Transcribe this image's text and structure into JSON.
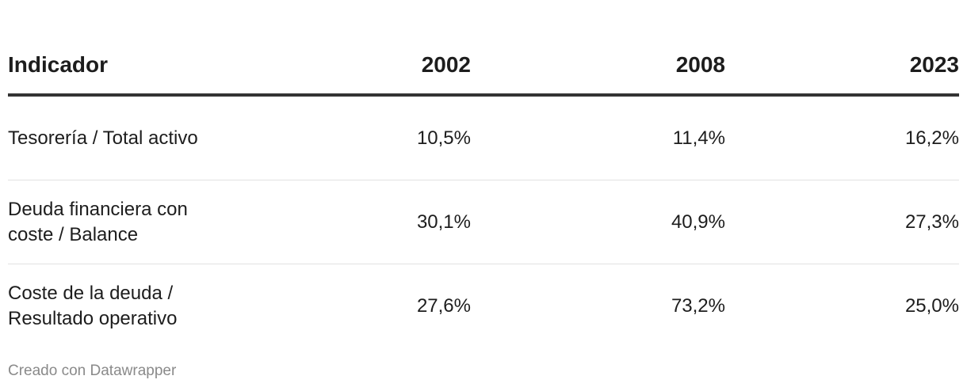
{
  "table": {
    "header": [
      "Indicador",
      "2002",
      "2008",
      "2023"
    ],
    "rows": [
      [
        "Tesorería / Total activo",
        "10,5%",
        "11,4%",
        "16,2%"
      ],
      [
        "Deuda financiera con coste / Balance",
        "30,1%",
        "40,9%",
        "27,3%"
      ],
      [
        "Coste de la deuda / Resultado operativo",
        "27,6%",
        "73,2%",
        "25,0%"
      ]
    ]
  },
  "footer": "Creado con Datawrapper"
}
